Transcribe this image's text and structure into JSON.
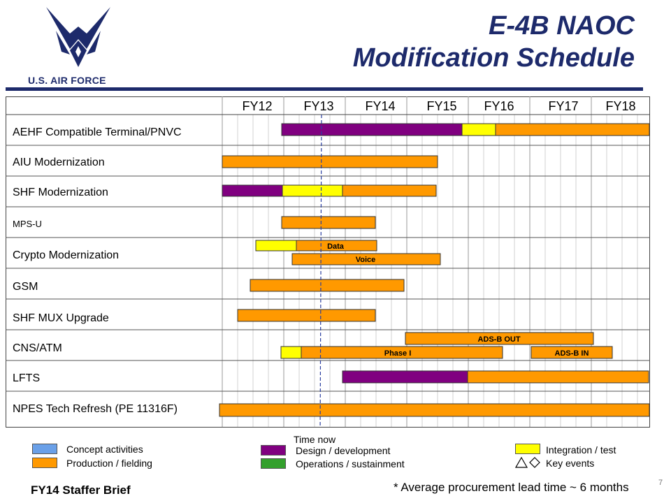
{
  "header": {
    "logo_text": "U.S. AIR FORCE",
    "title_line1": "E-4B NAOC",
    "title_line2": "Modification Schedule"
  },
  "colors": {
    "navy": "#1d2a6b",
    "concept": "#6aa0e8",
    "production": "#ff9900",
    "design": "#800080",
    "operations": "#33a02c",
    "integration": "#ffff00"
  },
  "fiscal_years": [
    "FY12",
    "FY13",
    "FY14",
    "FY15",
    "FY16",
    "FY17",
    "FY18"
  ],
  "programs": [
    {
      "name": "AEHF  Compatible Terminal/PNVC",
      "small": false
    },
    {
      "name": "AIU Modernization",
      "small": false
    },
    {
      "name": "SHF Modernization",
      "small": false
    },
    {
      "name": "MPS-U",
      "small": true
    },
    {
      "name": "Crypto Modernization",
      "small": false
    },
    {
      "name": "GSM",
      "small": false
    },
    {
      "name": "SHF MUX Upgrade",
      "small": false
    },
    {
      "name": "CNS/ATM",
      "small": false
    },
    {
      "name": "LFTS",
      "small": false
    },
    {
      "name": "NPES Tech Refresh (PE 11316F)",
      "small": false
    }
  ],
  "bar_labels": {
    "data": "Data",
    "voice": "Voice",
    "adsb_out": "ADS-B OUT",
    "phase_1": "Phase I",
    "adsb_in": "ADS-B IN"
  },
  "legend": {
    "time_now": "Time now",
    "concept": "Concept activities",
    "production": "Production / fielding",
    "design": "Design / development",
    "operations": "Operations / sustainment",
    "integration": "Integration  / test",
    "key_events": "Key events"
  },
  "footer": {
    "brief": "FY14 Staffer Brief",
    "note": "* Average procurement lead time ~ 6 months",
    "page": "7"
  }
}
